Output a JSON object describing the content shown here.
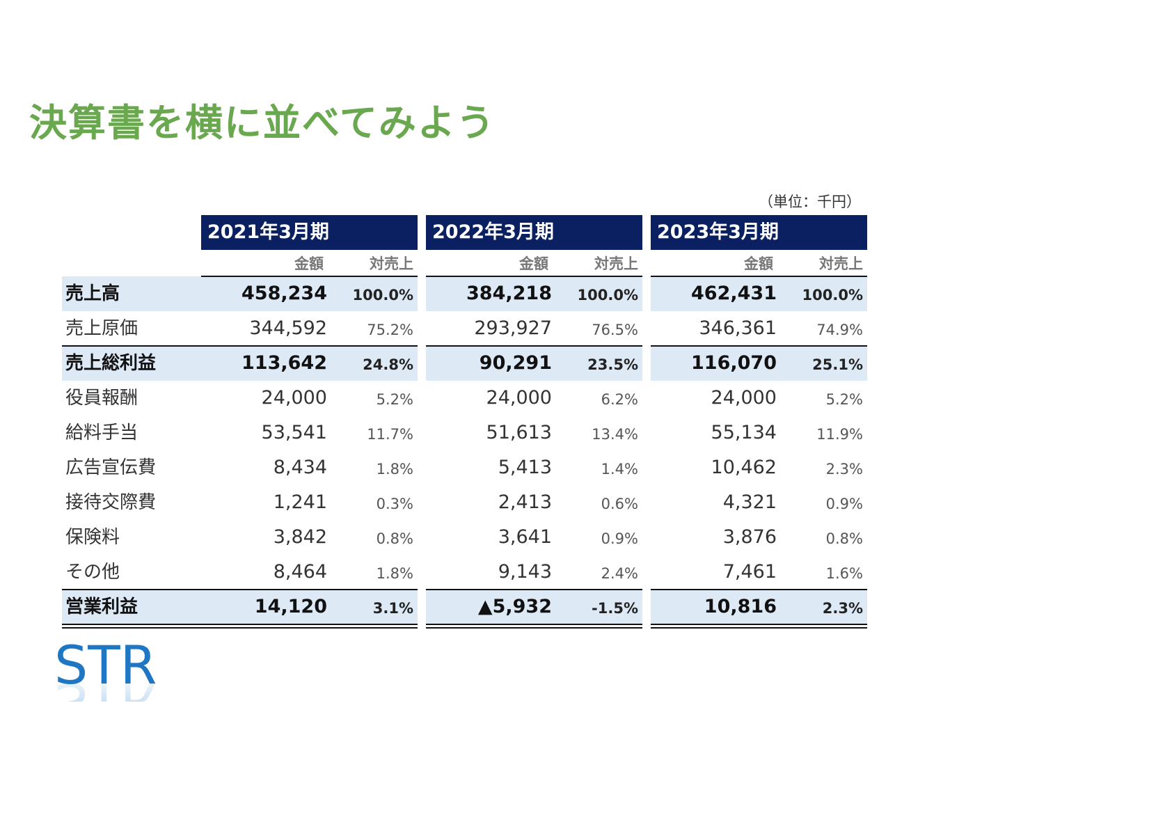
{
  "title": "決算書を横に並べてみよう",
  "unit": "（単位：千円）",
  "periods": [
    "2021年3月期",
    "2022年3月期",
    "2023年3月期"
  ],
  "subheaders": {
    "amount": "金額",
    "ratio": "対売上"
  },
  "rows": [
    {
      "label": "売上高",
      "bold": true,
      "cells": [
        [
          "458,234",
          "100.0%"
        ],
        [
          "384,218",
          "100.0%"
        ],
        [
          "462,431",
          "100.0%"
        ]
      ]
    },
    {
      "label": "売上原価",
      "bold": false,
      "cells": [
        [
          "344,592",
          "75.2%"
        ],
        [
          "293,927",
          "76.5%"
        ],
        [
          "346,361",
          "74.9%"
        ]
      ]
    },
    {
      "label": "売上総利益",
      "bold": true,
      "cells": [
        [
          "113,642",
          "24.8%"
        ],
        [
          "90,291",
          "23.5%"
        ],
        [
          "116,070",
          "25.1%"
        ]
      ]
    },
    {
      "label": "役員報酬",
      "bold": false,
      "cells": [
        [
          "24,000",
          "5.2%"
        ],
        [
          "24,000",
          "6.2%"
        ],
        [
          "24,000",
          "5.2%"
        ]
      ]
    },
    {
      "label": "給料手当",
      "bold": false,
      "cells": [
        [
          "53,541",
          "11.7%"
        ],
        [
          "51,613",
          "13.4%"
        ],
        [
          "55,134",
          "11.9%"
        ]
      ]
    },
    {
      "label": "広告宣伝費",
      "bold": false,
      "cells": [
        [
          "8,434",
          "1.8%"
        ],
        [
          "5,413",
          "1.4%"
        ],
        [
          "10,462",
          "2.3%"
        ]
      ]
    },
    {
      "label": "接待交際費",
      "bold": false,
      "cells": [
        [
          "1,241",
          "0.3%"
        ],
        [
          "2,413",
          "0.6%"
        ],
        [
          "4,321",
          "0.9%"
        ]
      ]
    },
    {
      "label": "保険料",
      "bold": false,
      "cells": [
        [
          "3,842",
          "0.8%"
        ],
        [
          "3,641",
          "0.9%"
        ],
        [
          "3,876",
          "0.8%"
        ]
      ]
    },
    {
      "label": "その他",
      "bold": false,
      "cells": [
        [
          "8,464",
          "1.8%"
        ],
        [
          "9,143",
          "2.4%"
        ],
        [
          "7,461",
          "1.6%"
        ]
      ]
    },
    {
      "label": "営業利益",
      "bold": true,
      "cells": [
        [
          "14,120",
          "3.1%"
        ],
        [
          "▲5,932",
          "-1.5%"
        ],
        [
          "10,816",
          "2.3%"
        ]
      ]
    }
  ],
  "logo": {
    "text": "STR",
    "color": "#1f77c4"
  }
}
